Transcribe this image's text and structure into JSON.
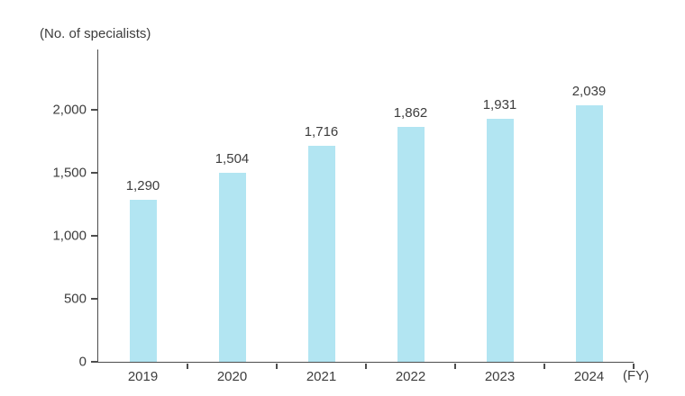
{
  "chart_data": {
    "type": "bar",
    "title": "(No. of specialists)",
    "x_axis_unit": "(FY)",
    "categories": [
      "2019",
      "2020",
      "2021",
      "2022",
      "2023",
      "2024"
    ],
    "values": [
      1290,
      1504,
      1716,
      1862,
      1931,
      2039
    ],
    "value_labels": [
      "1,290",
      "1,504",
      "1,716",
      "1,862",
      "1,931",
      "2,039"
    ],
    "xlabel": "FY",
    "ylabel": "No. of specialists",
    "ylim": [
      0,
      2480
    ],
    "y_ticks": [
      {
        "value": 0,
        "label": "0"
      },
      {
        "value": 500,
        "label": "500"
      },
      {
        "value": 1000,
        "label": "1,000"
      },
      {
        "value": 1500,
        "label": "1,500"
      },
      {
        "value": 2000,
        "label": "2,000"
      }
    ],
    "grid": false,
    "legend": "none",
    "colors": {
      "bar": "#b2e5f2",
      "axis": "#4d4d4d",
      "text": "#3d3d3d",
      "background": "#ffffff"
    }
  }
}
